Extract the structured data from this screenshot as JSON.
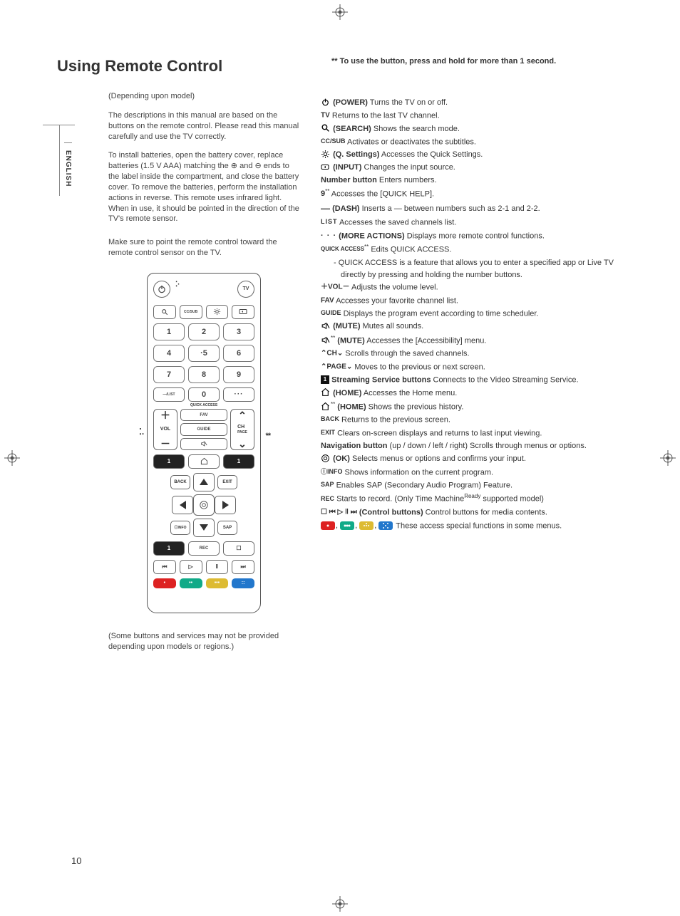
{
  "lang_label": "ENGLISH",
  "page_number": "10",
  "title": "Using Remote Control",
  "depends": "(Depending upon model)",
  "para1": "The descriptions in this manual are based on the buttons on the remote control. Please read this manual carefully and use the TV correctly.",
  "para2": "To install batteries, open the battery cover, replace batteries (1.5 V AAA) matching the ⊕ and ⊖ ends to the label inside the compartment, and close the battery cover. To remove the batteries, perform the installation actions in reverse. This remote uses infrared light. When in use, it should be pointed in the direction of the TV's remote sensor.",
  "para3": "Make sure to point the remote control toward the remote control sensor on the TV.",
  "footnote": "(Some buttons and services may not be provided depending upon models or regions.)",
  "hold_note": "** To use the button, press and hold for more than 1 second.",
  "side_dots_left": "⁚.",
  "side_dots_right": "**",
  "remote_diagram": {
    "row_top": {
      "power": "⏻",
      "mic": "⁚·",
      "tv": "TV"
    },
    "row_icons": [
      "🔍",
      "CC/SUB",
      "⚙",
      "⊂"
    ],
    "nums": [
      [
        "1",
        "2",
        "3"
      ],
      [
        "4",
        "·5",
        "6"
      ],
      [
        "7",
        "8",
        "9"
      ]
    ],
    "row_zero": [
      "—/LIST",
      "0",
      "···"
    ],
    "quick_access": "QUICK ACCESS",
    "vol_label": "VOL",
    "ch_label": "CH",
    "page_label": "PAGE",
    "mid": [
      "FAV",
      "GUIDE",
      "🔇"
    ],
    "stream_row": [
      "1",
      "⌂",
      "1"
    ],
    "nav": {
      "back": "BACK",
      "exit": "EXIT",
      "info": "ⓘINFO",
      "sap": "SAP",
      "ok": "◎"
    },
    "rec_row": [
      "1",
      "REC",
      "☐"
    ],
    "media": [
      "⏮",
      "▷",
      "‖",
      "⏭"
    ],
    "colors": [
      "#d22",
      "#1a8",
      "#db3",
      "#27c"
    ]
  },
  "descriptions": [
    {
      "icon": "power",
      "label": "(POWER)",
      "text": " Turns the TV on or off."
    },
    {
      "icon": "tv",
      "label": "",
      "text": " Returns to the last TV channel."
    },
    {
      "icon": "search",
      "label": "(SEARCH)",
      "text": " Shows the search mode."
    },
    {
      "icon": "ccsub",
      "label": "",
      "text": " Activates or deactivates the subtitles."
    },
    {
      "icon": "gear",
      "label": "(Q. Settings)",
      "text": " Accesses the Quick Settings."
    },
    {
      "icon": "input",
      "label": "(INPUT)",
      "text": " Changes the input source."
    },
    {
      "icon": "",
      "label": "Number button",
      "text": " Enters numbers."
    },
    {
      "icon": "nine",
      "label": "",
      "sup": "**",
      "text": " Accesses the [QUICK HELP]."
    },
    {
      "icon": "dash",
      "label": "(DASH)",
      "text": " Inserts a — between numbers such as 2-1 and 2-2."
    },
    {
      "icon": "list",
      "label": "",
      "text": " Accesses the saved channels list."
    },
    {
      "icon": "more",
      "label": "(MORE ACTIONS)",
      "text": " Displays more remote control functions."
    },
    {
      "icon": "qa",
      "label": "",
      "sup": "**",
      "text": " Edits QUICK ACCESS."
    }
  ],
  "qa_sub": "QUICK ACCESS is a feature that allows you to enter a specified app or Live TV directly by pressing and holding the number buttons.",
  "descriptions2": [
    {
      "icon": "vol",
      "label": "",
      "text": " Adjusts the volume level."
    },
    {
      "icon": "fav",
      "label": "",
      "text": " Accesses your favorite channel list."
    },
    {
      "icon": "guide",
      "label": "",
      "text": " Displays the program event according to time scheduler."
    },
    {
      "icon": "mute",
      "label": "(MUTE)",
      "text": " Mutes all sounds."
    },
    {
      "icon": "mute",
      "label": "(MUTE)",
      "sup": "**",
      "text": " Accesses the [Accessibility] menu."
    },
    {
      "icon": "ch",
      "label": "",
      "text": " Scrolls through the saved channels."
    },
    {
      "icon": "page",
      "label": "",
      "text": " Moves to the previous or next screen."
    },
    {
      "icon": "stream",
      "label": "Streaming Service buttons",
      "text": " Connects to the Video Streaming Service."
    },
    {
      "icon": "home",
      "label": "(HOME)",
      "text": " Accesses the Home menu."
    },
    {
      "icon": "home",
      "label": "(HOME)",
      "sup": "**",
      "text": " Shows the previous history."
    },
    {
      "icon": "back",
      "label": "",
      "text": " Returns to the previous screen."
    },
    {
      "icon": "exit",
      "label": "",
      "text": " Clears on-screen displays and returns to last input viewing."
    },
    {
      "icon": "",
      "label": "Navigation button",
      "text": " (up / down / left / right)  Scrolls through menus or options."
    },
    {
      "icon": "ok",
      "label": "(OK)",
      "text": " Selects menus or options and confirms your input."
    },
    {
      "icon": "info",
      "label": "",
      "text": " Shows information on the current program."
    },
    {
      "icon": "sap",
      "label": "",
      "text": " Enables SAP (Secondary Audio Program) Feature."
    },
    {
      "icon": "rec",
      "label": "",
      "text": " Starts to record. (Only Time Machine",
      "ready": "Ready",
      "text2": " supported model)"
    },
    {
      "icon": "ctrl",
      "label": "(Control buttons)",
      "text": " Control buttons for media contents."
    },
    {
      "icon": "colors",
      "label": "",
      "text": " These access special functions in some menus."
    }
  ]
}
